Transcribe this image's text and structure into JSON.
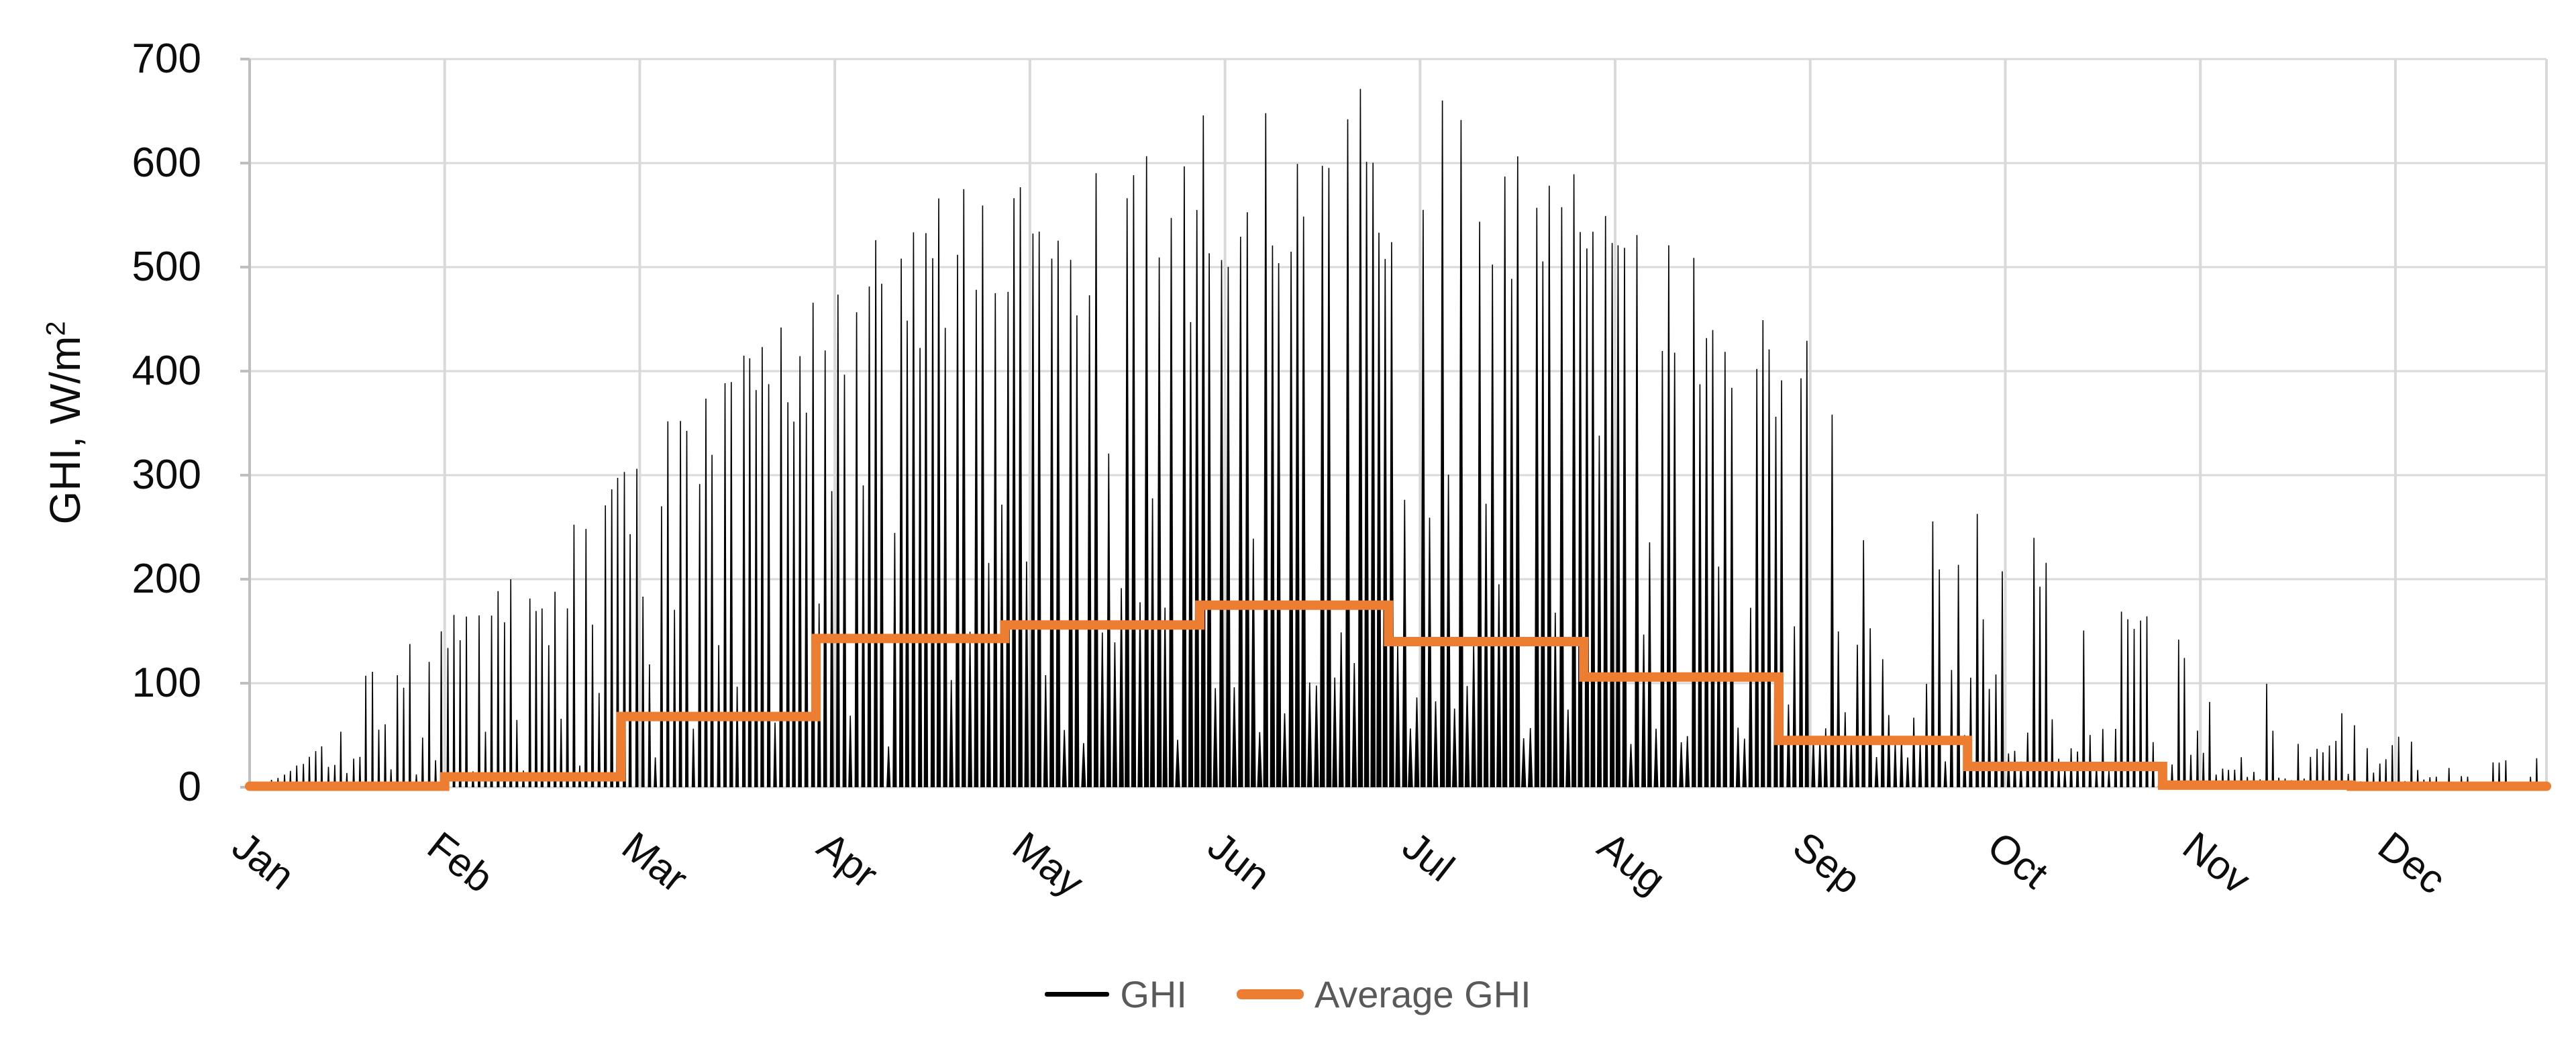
{
  "page": {
    "background": "#FFFFFF"
  },
  "chart_data": {
    "type": "line",
    "title": "",
    "xlabel": "",
    "ylabel": "GHI, W/m²",
    "ylabel_main": "GHI, W/m",
    "ylabel_sup": "2",
    "ylim": [
      0,
      700
    ],
    "yticks": [
      0,
      100,
      200,
      300,
      400,
      500,
      600,
      700
    ],
    "grid": "on",
    "x_major_unit_days": 31,
    "months": [
      "Jan",
      "Feb",
      "Mar",
      "Apr",
      "May",
      "Jun",
      "Jul",
      "Aug",
      "Sep",
      "Oct",
      "Nov",
      "Dec"
    ],
    "month_day_offsets": [
      0,
      31,
      59,
      90,
      120,
      151,
      181,
      212,
      243,
      273,
      304,
      334,
      365
    ],
    "grid_color": "#D9D9D9",
    "axis_color": "#BFBFBF",
    "tick_label_color": "#0D0D0D",
    "legend_text_color": "#595959",
    "legend_position": "bottom",
    "series": [
      {
        "name": "GHI",
        "kind": "hourly_spikes",
        "color": "#000000",
        "max_value_wm2": 686,
        "monthly_peak_wm2": [
          105,
          215,
          410,
          565,
          610,
          686,
          663,
          525,
          400,
          210,
          110,
          30
        ],
        "monthly_sunny_fraction": [
          0.45,
          0.55,
          0.5,
          0.55,
          0.6,
          0.62,
          0.6,
          0.55,
          0.28,
          0.22,
          0.18,
          0.25
        ],
        "seed": 20
      },
      {
        "name": "Average GHI",
        "kind": "monthly_step",
        "color": "#ED7D31",
        "values_wm2": [
          1,
          10,
          68,
          143,
          156,
          175,
          140,
          106,
          45,
          20,
          2,
          1
        ]
      }
    ]
  }
}
